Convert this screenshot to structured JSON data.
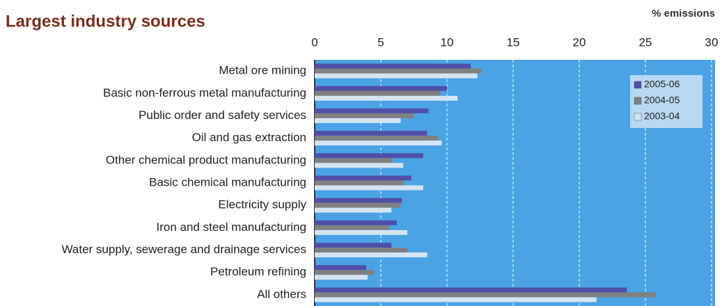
{
  "chart_data": {
    "type": "bar",
    "orientation": "horizontal",
    "title": "Largest industry sources",
    "xlabel": "% emissions",
    "categories": [
      "Metal ore mining",
      "Basic non-ferrous metal manufacturing",
      "Public order and safety services",
      "Oil and gas extraction",
      "Other chemical product manufacturing",
      "Basic chemical manufacturing",
      "Electricity supply",
      "Iron and steel manufacturing",
      "Water supply, sewerage and drainage services",
      "Petroleum refining",
      "All others"
    ],
    "series": [
      {
        "name": "2005-06",
        "color": "#5050a8",
        "values": [
          11.8,
          10.0,
          8.6,
          8.5,
          8.2,
          7.3,
          6.6,
          6.2,
          5.8,
          3.9,
          23.6
        ]
      },
      {
        "name": "2004-05",
        "color": "#808080",
        "values": [
          12.6,
          9.5,
          7.5,
          9.3,
          5.9,
          6.7,
          6.5,
          5.6,
          7.0,
          4.5,
          25.8
        ]
      },
      {
        "name": "2003-04",
        "color": "#d4e4f4",
        "values": [
          12.3,
          10.8,
          6.5,
          9.6,
          6.7,
          8.2,
          5.8,
          7.0,
          8.5,
          4.0,
          21.3
        ]
      }
    ],
    "xlim": [
      0,
      30
    ],
    "xticks": [
      0,
      5,
      10,
      15,
      20,
      25,
      30
    ],
    "grid": true,
    "legend": "upper right",
    "background": "#4aa3e4"
  }
}
